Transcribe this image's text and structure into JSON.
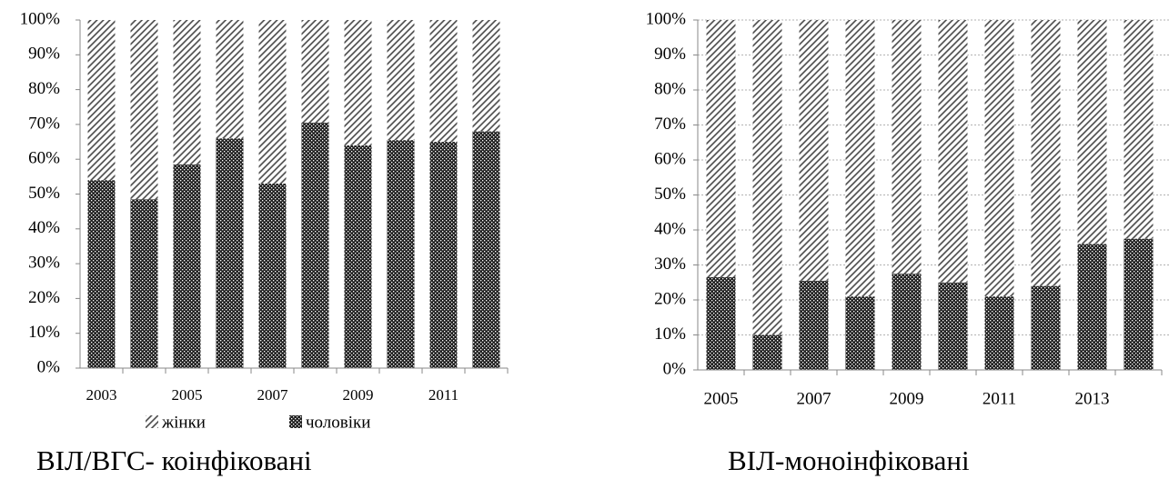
{
  "chart_data": [
    {
      "type": "bar",
      "stacked": true,
      "title": "ВІЛ/ВГС- коінфіковані",
      "categories": [
        "2003",
        null,
        "2005",
        null,
        "2007",
        null,
        "2009",
        null,
        "2011",
        null
      ],
      "series": [
        {
          "name": "жінки",
          "color": "#444444",
          "pattern": "hatch",
          "values": [
            46,
            51.5,
            41.5,
            34,
            47,
            29.5,
            36,
            34.5,
            35,
            32
          ]
        },
        {
          "name": "чоловіки",
          "color": "#222222",
          "pattern": "crosshatch",
          "values": [
            54,
            48.5,
            58.5,
            66,
            53,
            70.5,
            64,
            65.5,
            65,
            68
          ]
        }
      ],
      "ylim": [
        0,
        100
      ],
      "yticks": [
        {
          "value": 0,
          "label": "0%"
        },
        {
          "value": 10,
          "label": "10%"
        },
        {
          "value": 20,
          "label": "20%"
        },
        {
          "value": 30,
          "label": "30%"
        },
        {
          "value": 40,
          "label": "40%"
        },
        {
          "value": 50,
          "label": "50%"
        },
        {
          "value": 60,
          "label": "60%"
        },
        {
          "value": 70,
          "label": "70%"
        },
        {
          "value": 80,
          "label": "80%"
        },
        {
          "value": 90,
          "label": "90%"
        },
        {
          "value": 100,
          "label": "100%"
        }
      ],
      "grid": false,
      "legend": "bottom"
    },
    {
      "type": "bar",
      "stacked": true,
      "title": "ВІЛ-моноінфіковані",
      "categories": [
        "2005",
        null,
        "2007",
        null,
        "2009",
        null,
        "2011",
        null,
        "2013",
        null
      ],
      "series": [
        {
          "color": "#444444",
          "pattern": "hatch",
          "values": [
            73.5,
            90,
            74.5,
            79,
            72.5,
            75,
            79,
            76,
            64,
            62.5
          ]
        },
        {
          "color": "#222222",
          "pattern": "crosshatch",
          "values": [
            26.5,
            10,
            25.5,
            21,
            27.5,
            25,
            21,
            24,
            36,
            37.5
          ]
        }
      ],
      "ylim": [
        0,
        100
      ],
      "yticks": [
        {
          "value": 0,
          "label": "0%"
        },
        {
          "value": 10,
          "label": "10%"
        },
        {
          "value": 20,
          "label": "20%"
        },
        {
          "value": 30,
          "label": "30%"
        },
        {
          "value": 40,
          "label": "40%"
        },
        {
          "value": 50,
          "label": "50%"
        },
        {
          "value": 60,
          "label": "60%"
        },
        {
          "value": 70,
          "label": "70%"
        },
        {
          "value": 80,
          "label": "80%"
        },
        {
          "value": 90,
          "label": "90%"
        },
        {
          "value": 100,
          "label": "100%"
        }
      ],
      "grid": true
    }
  ]
}
